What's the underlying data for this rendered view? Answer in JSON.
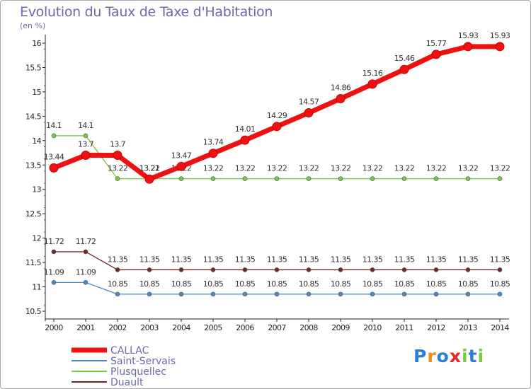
{
  "chart_data": {
    "type": "line",
    "title": "Evolution du Taux de Taxe d'Habitation",
    "unit_label": "(en %)",
    "x": [
      "2000",
      "2001",
      "2002",
      "2003",
      "2004",
      "2005",
      "2006",
      "2007",
      "2008",
      "2009",
      "2010",
      "2011",
      "2012",
      "2013",
      "2014"
    ],
    "ylim": [
      10.5,
      16
    ],
    "yticks": [
      10.5,
      11,
      11.5,
      12,
      12.5,
      13,
      13.5,
      14,
      14.5,
      15,
      15.5,
      16
    ],
    "ytick_labels": [
      "10.5",
      "11",
      "11.5",
      "12",
      "12.5",
      "13",
      "13.5",
      "14",
      "14.5",
      "15",
      "15.5",
      "16"
    ],
    "series": [
      {
        "name": "Plusquellec",
        "color": "#7ac943",
        "values": [
          14.1,
          14.1,
          13.22,
          13.22,
          13.22,
          13.22,
          13.22,
          13.22,
          13.22,
          13.22,
          13.22,
          13.22,
          13.22,
          13.22,
          13.22
        ],
        "labels": [
          "14.1",
          "14.1",
          "13.22",
          "13.22",
          "13.22",
          "13.22",
          "13.22",
          "13.22",
          "13.22",
          "13.22",
          "13.22",
          "13.22",
          "13.22",
          "13.22",
          "13.22"
        ]
      },
      {
        "name": "Duault",
        "color": "#6b2a2a",
        "values": [
          11.72,
          11.72,
          11.35,
          11.35,
          11.35,
          11.35,
          11.35,
          11.35,
          11.35,
          11.35,
          11.35,
          11.35,
          11.35,
          11.35,
          11.35
        ],
        "labels": [
          "11.72",
          "11.72",
          "11.35",
          "11.35",
          "11.35",
          "11.35",
          "11.35",
          "11.35",
          "11.35",
          "11.35",
          "11.35",
          "11.35",
          "11.35",
          "11.35",
          "11.35"
        ]
      },
      {
        "name": "Saint-Servais",
        "color": "#4a8ac8",
        "values": [
          11.09,
          11.09,
          10.85,
          10.85,
          10.85,
          10.85,
          10.85,
          10.85,
          10.85,
          10.85,
          10.85,
          10.85,
          10.85,
          10.85,
          10.85
        ],
        "labels": [
          "11.09",
          "11.09",
          "10.85",
          "10.85",
          "10.85",
          "10.85",
          "10.85",
          "10.85",
          "10.85",
          "10.85",
          "10.85",
          "10.85",
          "10.85",
          "10.85",
          "10.85"
        ]
      },
      {
        "name": "CALLAC",
        "color": "#ee1111",
        "values": [
          13.44,
          13.7,
          13.7,
          13.21,
          13.47,
          13.74,
          14.01,
          14.29,
          14.57,
          14.86,
          15.16,
          15.46,
          15.77,
          15.93,
          15.93
        ],
        "labels": [
          "13.44",
          "13.7",
          "13.7",
          "13.21",
          "13.47",
          "13.74",
          "14.01",
          "14.29",
          "14.57",
          "14.86",
          "15.16",
          "15.46",
          "15.77",
          "15.93",
          "15.93"
        ]
      }
    ],
    "legend": [
      "CALLAC",
      "Saint-Servais",
      "Plusquellec",
      "Duault"
    ],
    "legend_position": "bottom-left",
    "grid": false
  },
  "logo": {
    "text": "Proxiti",
    "letters": [
      "P",
      "r",
      "o",
      "x",
      "i",
      "t",
      "i"
    ],
    "colors": [
      "#2a7fd4",
      "#f08a1c",
      "#2a7fd4",
      "#e8262a",
      "#7ac943",
      "#2a7fd4",
      "#7ac943"
    ]
  }
}
